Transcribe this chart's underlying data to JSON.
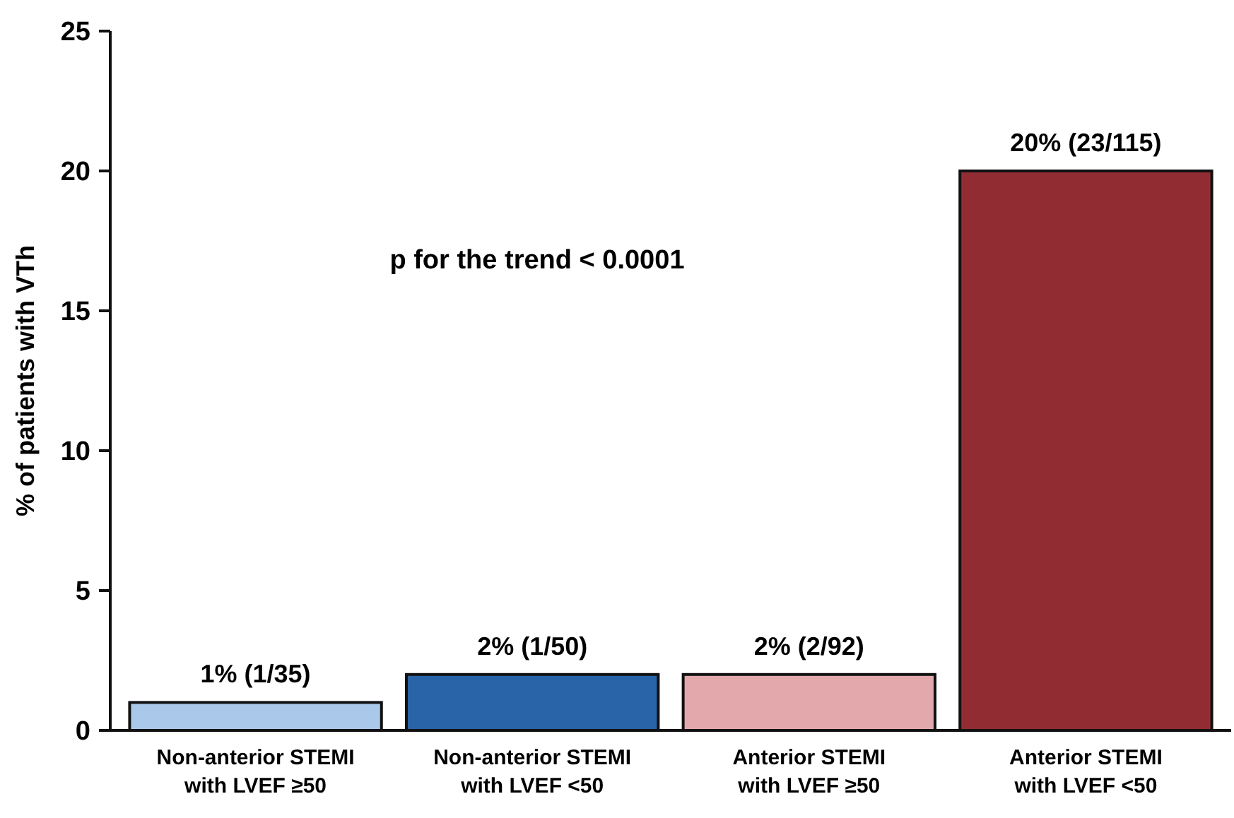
{
  "chart_data": {
    "type": "bar",
    "ylabel": "% of patients with VTh",
    "categories": [
      "Non-anterior STEMI with LVEF ≥50",
      "Non-anterior STEMI with LVEF <50",
      "Anterior STEMI with LVEF ≥50",
      "Anterior STEMI with LVEF <50"
    ],
    "values": [
      1,
      2,
      2,
      20
    ],
    "colors": [
      "#a9c8ea",
      "#2a64a8",
      "#e2a8ab",
      "#922c33"
    ],
    "value_labels": [
      "1% (1/35)",
      "2% (1/50)",
      "2% (2/92)",
      "20% (23/115)"
    ],
    "ylim": [
      0,
      25
    ],
    "yticks": [
      0,
      5,
      10,
      15,
      20,
      25
    ],
    "grid": false,
    "annotations": [
      "p for the trend < 0.0001"
    ]
  }
}
